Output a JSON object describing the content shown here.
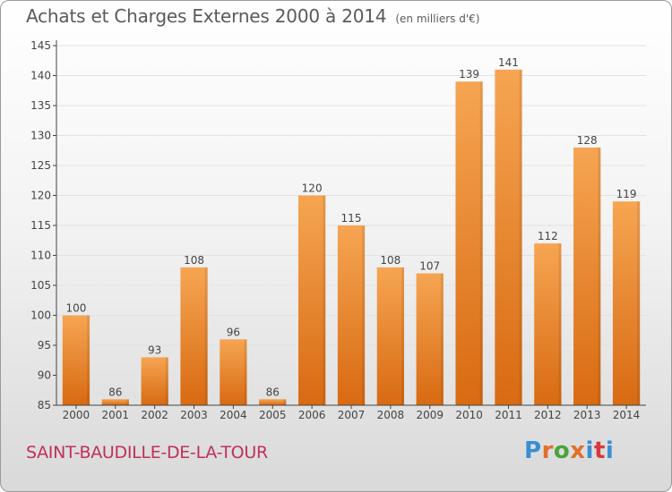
{
  "title": "Achats et Charges Externes 2000 à 2014",
  "unit": "(en milliers d'€)",
  "commune": "SAINT-BAUDILLE-DE-LA-TOUR",
  "brand": {
    "letters": [
      "P",
      "r",
      "o",
      "x",
      "i",
      "t",
      "i"
    ],
    "colors": [
      "#3a8fd0",
      "#e0702a",
      "#4aa33a",
      "#e0702a",
      "#3a8fd0",
      "#d63a3a",
      "#3a8fd0"
    ]
  },
  "colors": {
    "bar_light": "#f6a552",
    "bar_dark": "#d86a12",
    "grid": "#e2e2e2",
    "axis": "#444444",
    "text": "#444444"
  },
  "chart_data": {
    "type": "bar",
    "categories": [
      "2000",
      "2001",
      "2002",
      "2003",
      "2004",
      "2005",
      "2006",
      "2007",
      "2008",
      "2009",
      "2010",
      "2011",
      "2012",
      "2013",
      "2014"
    ],
    "values": [
      100,
      86,
      93,
      108,
      96,
      86,
      120,
      115,
      108,
      107,
      139,
      141,
      112,
      128,
      119
    ],
    "ylim": [
      85,
      145
    ],
    "yticks": [
      85,
      90,
      95,
      100,
      105,
      110,
      115,
      120,
      125,
      130,
      135,
      140,
      145
    ],
    "grid": true,
    "data_labels": true
  }
}
